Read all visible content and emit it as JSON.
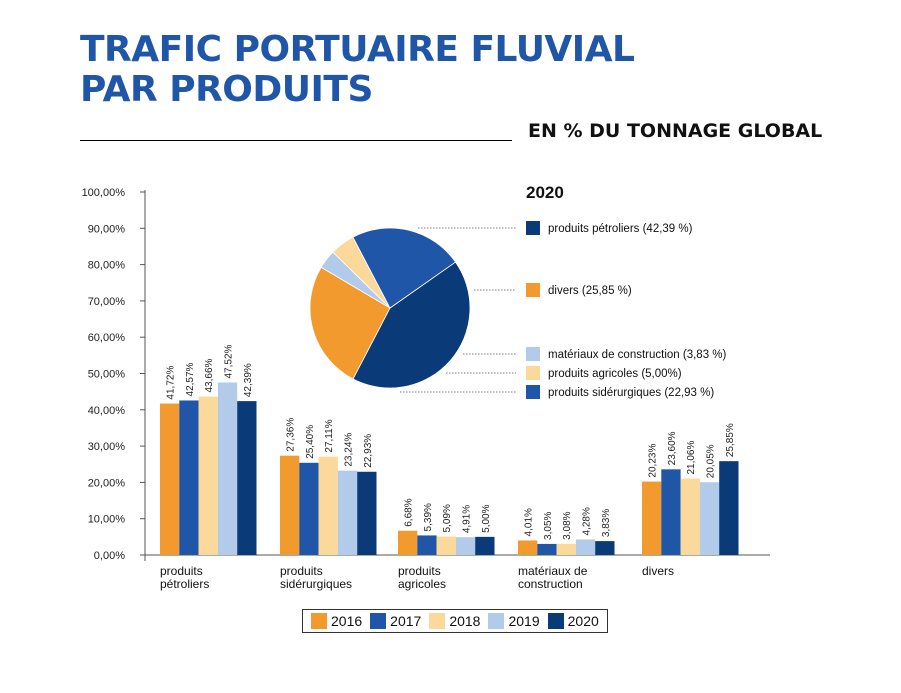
{
  "header": {
    "title_line1": "TRAFIC PORTUAIRE FLUVIAL",
    "title_line2": "PAR PRODUITS",
    "subtitle": "EN % DU TONNAGE GLOBAL"
  },
  "colors": {
    "2016": "#f39a2e",
    "2017": "#1f56a8",
    "2018": "#fbd99a",
    "2019": "#b3cbea",
    "2020": "#0a3a78"
  },
  "chart_data": [
    {
      "type": "bar",
      "categories": [
        [
          "produits",
          "pétroliers"
        ],
        [
          "produits",
          "sidérurgiques"
        ],
        [
          "produits",
          "agricoles"
        ],
        [
          "matériaux de",
          "construction"
        ],
        [
          "divers"
        ]
      ],
      "series": [
        {
          "name": "2016",
          "values": [
            41.72,
            27.36,
            6.68,
            4.01,
            20.23
          ],
          "labels": [
            "41,72%",
            "27,36%",
            "6,68%",
            "4,01%",
            "20,23%"
          ]
        },
        {
          "name": "2017",
          "values": [
            42.57,
            25.4,
            5.39,
            3.05,
            23.6
          ],
          "labels": [
            "42,57%",
            "25,40%",
            "5,39%",
            "3,05%",
            "23,60%"
          ]
        },
        {
          "name": "2018",
          "values": [
            43.66,
            27.11,
            5.09,
            3.08,
            21.06
          ],
          "labels": [
            "43,66%",
            "27,11%",
            "5,09%",
            "3,08%",
            "21,06%"
          ]
        },
        {
          "name": "2019",
          "values": [
            47.52,
            23.24,
            4.91,
            4.28,
            20.05
          ],
          "labels": [
            "47,52%",
            "23,24%",
            "4,91%",
            "4,28%",
            "20,05%"
          ]
        },
        {
          "name": "2020",
          "values": [
            42.39,
            22.93,
            5.0,
            3.83,
            25.85
          ],
          "labels": [
            "42,39%",
            "22,93%",
            "5,00%",
            "3,83%",
            "25,85%"
          ]
        }
      ],
      "yticks": [
        "0,00%",
        "10,00%",
        "20,00%",
        "30,00%",
        "40,00%",
        "50,00%",
        "60,00%",
        "70,00%",
        "80,00%",
        "90,00%",
        "100,00%"
      ],
      "ylim": [
        0,
        100
      ],
      "legend": "bottom"
    },
    {
      "type": "pie",
      "title": "2020",
      "slices": [
        {
          "label": "produits pétroliers (42,39 %)",
          "value": 42.39,
          "color": "#0a3a78"
        },
        {
          "label": "divers (25,85 %)",
          "value": 25.85,
          "color": "#f39a2e"
        },
        {
          "label": "matériaux de construction (3,83 %)",
          "value": 3.83,
          "color": "#b3cbea"
        },
        {
          "label": "produits agricoles (5,00%)",
          "value": 5.0,
          "color": "#fbd99a"
        },
        {
          "label": "produits sidérurgiques (22,93 %)",
          "value": 22.93,
          "color": "#1f56a8"
        }
      ],
      "legend": "right"
    }
  ]
}
